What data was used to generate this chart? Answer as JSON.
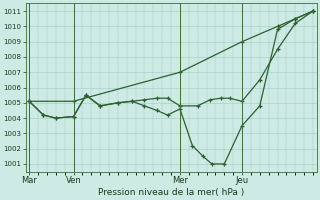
{
  "background_color": "#ceeae5",
  "grid_color": "#9eccc5",
  "line_color": "#2d6030",
  "title": "Pression niveau de la mer( hPa )",
  "ylim": [
    1000.5,
    1011.5
  ],
  "yticks": [
    1001,
    1002,
    1003,
    1004,
    1005,
    1006,
    1007,
    1008,
    1009,
    1010,
    1011
  ],
  "xlim": [
    -0.2,
    16.2
  ],
  "day_labels": [
    "Mar",
    "Ven",
    "Mer",
    "Jeu"
  ],
  "day_positions": [
    0.0,
    2.5,
    8.5,
    12.0
  ],
  "day_vline_positions": [
    0.0,
    2.5,
    8.5,
    12.0
  ],
  "line_upper_x": [
    0,
    2.5,
    8.5,
    12.0,
    14.0,
    15.0,
    16.0
  ],
  "line_upper_y": [
    1005.1,
    1005.1,
    1007.0,
    1009.0,
    1010.0,
    1010.5,
    1011.0
  ],
  "line_mid_x": [
    0,
    0.8,
    1.5,
    2.5,
    3.2,
    4.0,
    5.0,
    5.8,
    6.5,
    7.2,
    7.8,
    8.5,
    9.5,
    10.2,
    10.8,
    11.3,
    12.0,
    13.0,
    14.0,
    15.0,
    16.0
  ],
  "line_mid_y": [
    1005.1,
    1004.2,
    1004.0,
    1004.1,
    1005.5,
    1004.8,
    1005.0,
    1005.1,
    1005.2,
    1005.3,
    1005.3,
    1004.8,
    1004.8,
    1005.2,
    1005.3,
    1005.3,
    1005.1,
    1006.5,
    1008.5,
    1010.2,
    1011.0
  ],
  "line_low_x": [
    0,
    0.8,
    1.5,
    2.5,
    3.2,
    4.0,
    5.0,
    5.8,
    6.5,
    7.2,
    7.8,
    8.5,
    9.2,
    9.8,
    10.3,
    11.0,
    12.0,
    13.0,
    14.0,
    15.0,
    16.0
  ],
  "line_low_y": [
    1005.1,
    1004.2,
    1004.0,
    1004.1,
    1005.5,
    1004.8,
    1005.0,
    1005.1,
    1004.8,
    1004.5,
    1004.2,
    1004.6,
    1002.2,
    1001.5,
    1001.0,
    1001.0,
    1003.5,
    1004.8,
    1009.8,
    1010.5,
    1011.0
  ]
}
